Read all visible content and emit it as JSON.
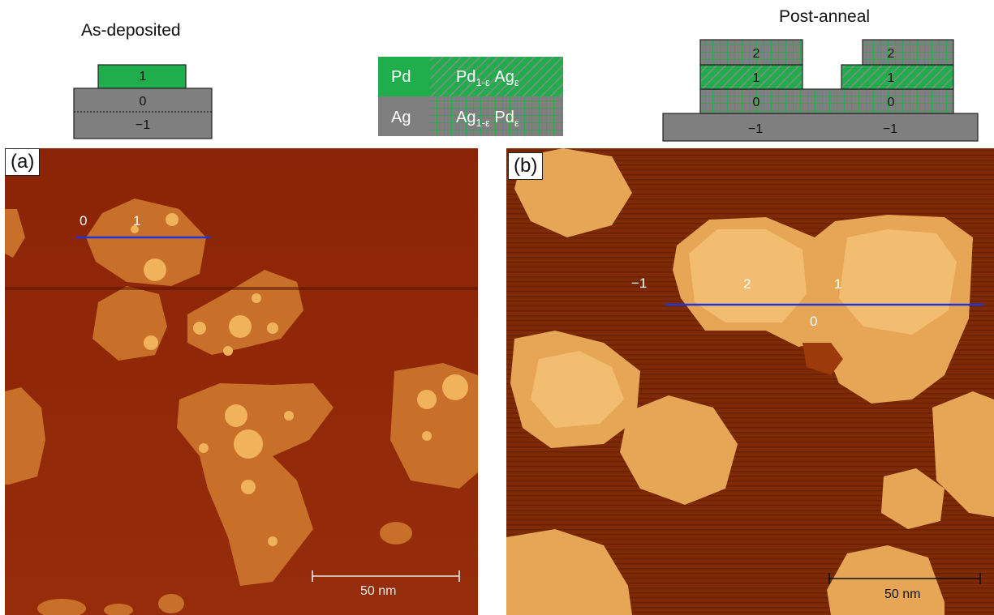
{
  "schematic_left": {
    "title": "As-deposited",
    "layer_labels": [
      "1",
      "0",
      "−1"
    ]
  },
  "legend": {
    "pd": "Pd",
    "pd_alloy_base": "Pd",
    "pd_alloy_sub1": "1-ε",
    "pd_alloy_mid": " Ag",
    "pd_alloy_sub2": "ε",
    "ag": "Ag",
    "ag_alloy_base": "Ag",
    "ag_alloy_sub1": "1-ε",
    "ag_alloy_mid": " Pd",
    "ag_alloy_sub2": "ε",
    "colors": {
      "pd": "#1fae4b",
      "ag": "#7f7f7f"
    }
  },
  "schematic_right": {
    "title": "Post-anneal",
    "left_labels": [
      "2",
      "1",
      "0",
      "−1"
    ],
    "right_labels": [
      "2",
      "1",
      "0",
      "−1"
    ]
  },
  "panel_a": {
    "tag": "(a)",
    "profile_labels": [
      "0",
      "1"
    ],
    "scalebar": "50 nm",
    "scalebar_fraction_of_width": 0.31
  },
  "panel_b": {
    "tag": "(b)",
    "profile_labels": [
      "−1",
      "2",
      "1",
      "0"
    ],
    "scalebar": "50 nm",
    "scalebar_fraction_of_width": 0.31
  }
}
